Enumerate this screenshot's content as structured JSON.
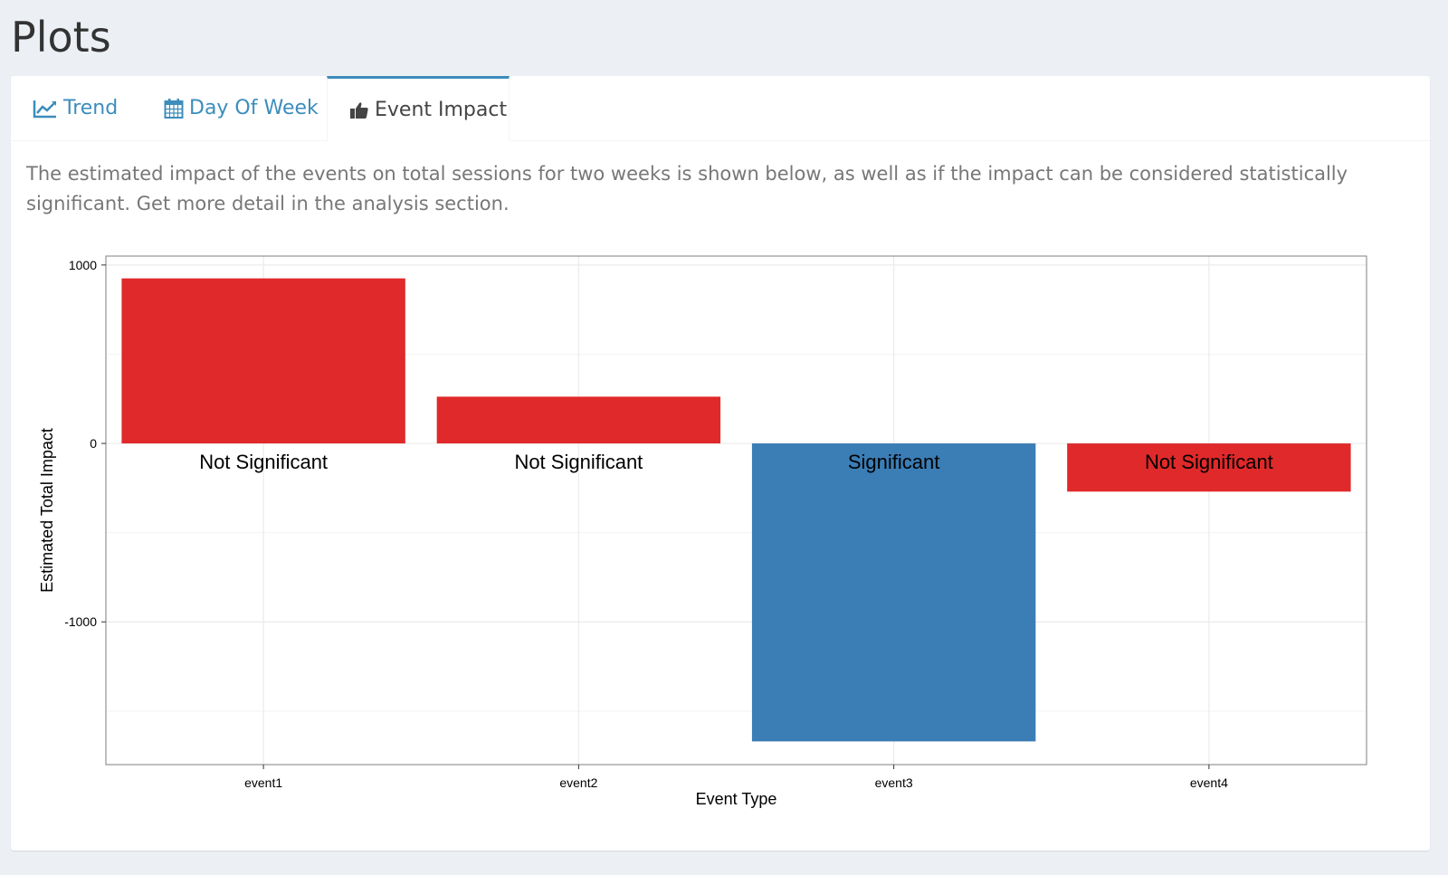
{
  "page": {
    "title": "Plots"
  },
  "tabs": [
    {
      "label": "Trend",
      "icon": "line-chart-icon",
      "active": false
    },
    {
      "label": "Day Of Week",
      "icon": "calendar-icon",
      "active": false
    },
    {
      "label": "Event Impact",
      "icon": "thumbs-up-icon",
      "active": true
    }
  ],
  "description": "The estimated impact of the events on total sessions for two weeks is shown below, as well as if the impact can be considered statistically significant. Get more detail in the analysis section.",
  "colors": {
    "accent": "#3c8dbc",
    "not_significant": "#e0292a",
    "significant": "#3b7db5"
  },
  "chart_data": {
    "type": "bar",
    "categories": [
      "event1",
      "event2",
      "event3",
      "event4"
    ],
    "values": [
      925,
      262,
      -1670,
      -270
    ],
    "labels": [
      "Not Significant",
      "Not Significant",
      "Significant",
      "Not Significant"
    ],
    "xlabel": "Event Type",
    "ylabel": "Estimated Total Impact",
    "yticks": [
      1000,
      0,
      -1000
    ],
    "ylim": [
      -1800,
      1050
    ],
    "grid": true,
    "legend": "none"
  }
}
